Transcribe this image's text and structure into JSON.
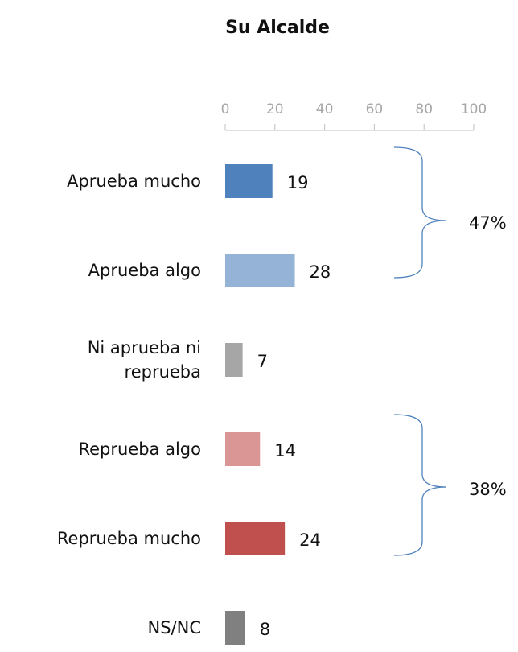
{
  "chart_data": {
    "type": "bar",
    "orientation": "horizontal",
    "title": "Su Alcalde",
    "categories": [
      "Aprueba mucho",
      "Aprueba algo",
      "Ni aprueba ni reprueba",
      "Reprueba algo",
      "Reprueba mucho",
      "NS/NC"
    ],
    "values": [
      19,
      28,
      7,
      14,
      24,
      8
    ],
    "colors": [
      "#4f81bd",
      "#95b3d7",
      "#a6a6a6",
      "#d99694",
      "#c0504d",
      "#808080"
    ],
    "xlim": [
      0,
      100
    ],
    "xticks": [
      0,
      20,
      40,
      60,
      80,
      100
    ],
    "annotations": [
      "47%",
      "38%"
    ]
  }
}
